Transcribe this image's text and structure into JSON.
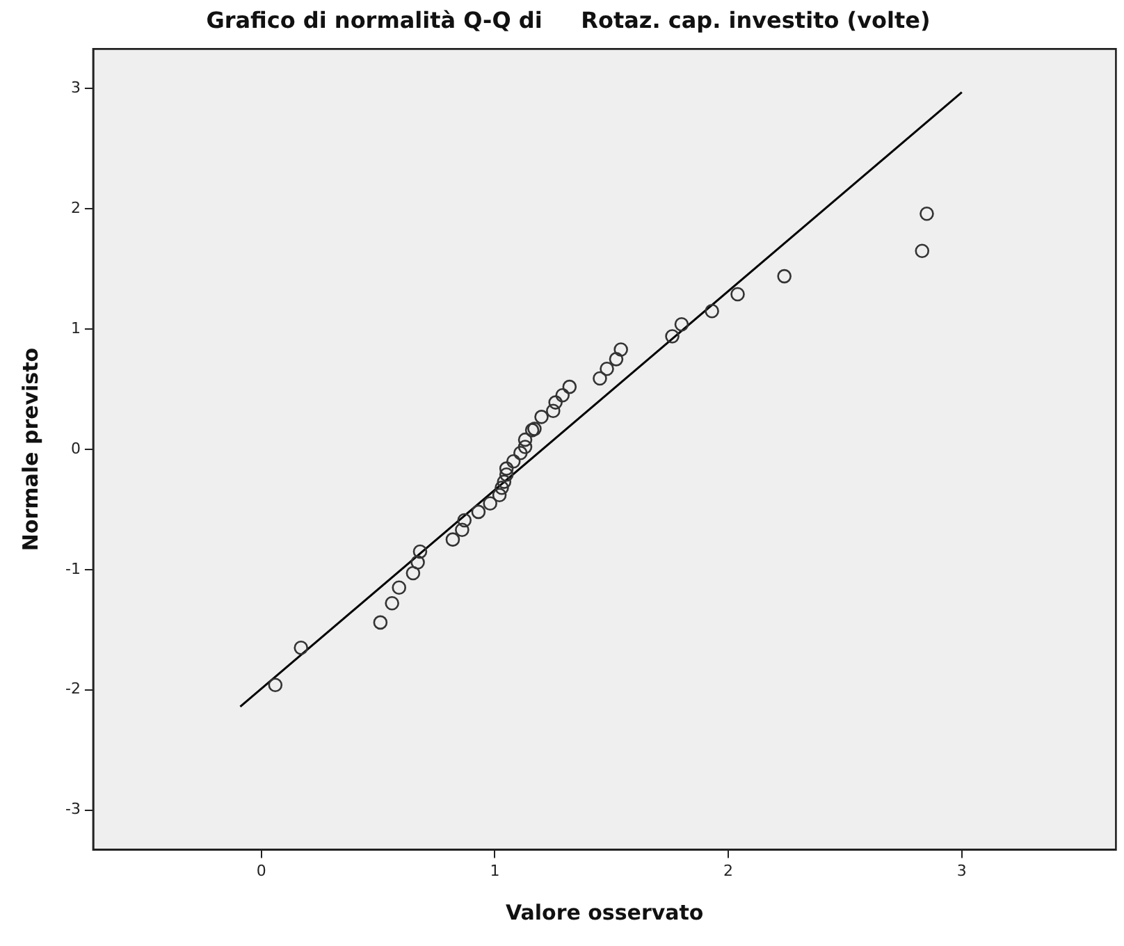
{
  "chart_data": {
    "type": "scatter",
    "title": "Grafico di normalità Q-Q di     Rotaz. cap. investito (volte)",
    "xlabel": "Valore osservato",
    "ylabel": "Normale previsto",
    "xlim": [
      -0.72,
      3.66
    ],
    "ylim": [
      -3.33,
      3.33
    ],
    "xticks": [
      0,
      1,
      2,
      3
    ],
    "yticks": [
      -3,
      -2,
      -1,
      0,
      1,
      2,
      3
    ],
    "grid": false,
    "legend": false,
    "series": [
      {
        "color": "#333333",
        "marker": "circle",
        "x": [
          0.06,
          0.17,
          0.51,
          0.56,
          0.59,
          0.65,
          0.67,
          0.68,
          0.82,
          0.86,
          0.87,
          0.93,
          0.98,
          1.02,
          1.03,
          1.04,
          1.05,
          1.05,
          1.08,
          1.11,
          1.13,
          1.13,
          1.16,
          1.17,
          1.2,
          1.25,
          1.26,
          1.29,
          1.32,
          1.45,
          1.48,
          1.52,
          1.54,
          1.76,
          1.8,
          1.93,
          2.04,
          2.24,
          2.83,
          2.85
        ],
        "values": [
          -1.96,
          -1.65,
          -1.44,
          -1.28,
          -1.15,
          -1.03,
          -0.94,
          -0.85,
          -0.75,
          -0.67,
          -0.59,
          -0.52,
          -0.45,
          -0.38,
          -0.32,
          -0.27,
          -0.21,
          -0.16,
          -0.1,
          -0.03,
          0.02,
          0.08,
          0.16,
          0.17,
          0.27,
          0.32,
          0.39,
          0.45,
          0.52,
          0.59,
          0.67,
          0.75,
          0.83,
          0.94,
          1.04,
          1.15,
          1.29,
          1.44,
          1.65,
          1.96
        ]
      },
      {
        "type": "line",
        "color": "#000000",
        "marker": "none",
        "x": [
          -0.09,
          3.0
        ],
        "values": [
          -2.14,
          2.97
        ]
      }
    ]
  }
}
